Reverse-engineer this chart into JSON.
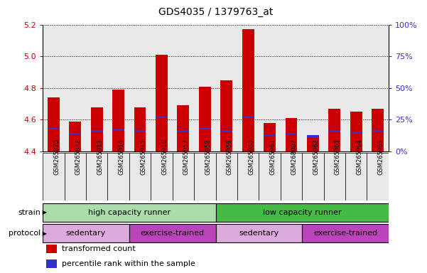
{
  "title": "GDS4035 / 1379763_at",
  "samples": [
    "GSM265870",
    "GSM265872",
    "GSM265913",
    "GSM265914",
    "GSM265915",
    "GSM265916",
    "GSM265957",
    "GSM265958",
    "GSM265959",
    "GSM265960",
    "GSM265961",
    "GSM268007",
    "GSM265962",
    "GSM265963",
    "GSM265964",
    "GSM265965"
  ],
  "transformed_counts": [
    4.74,
    4.59,
    4.68,
    4.79,
    4.68,
    5.01,
    4.69,
    4.81,
    4.85,
    5.17,
    4.58,
    4.61,
    4.49,
    4.67,
    4.65,
    4.67
  ],
  "percentile_ranks": [
    18,
    14,
    16,
    17,
    16,
    27,
    16,
    18,
    16,
    27,
    13,
    14,
    12,
    16,
    15,
    16
  ],
  "bar_base": 4.4,
  "ylim_left": [
    4.4,
    5.2
  ],
  "ylim_right": [
    0,
    100
  ],
  "yticks_left": [
    4.4,
    4.6,
    4.8,
    5.0,
    5.2
  ],
  "yticks_right": [
    0,
    25,
    50,
    75,
    100
  ],
  "ytick_labels_right": [
    "0%",
    "25%",
    "50%",
    "75%",
    "100%"
  ],
  "bar_color": "#cc0000",
  "percentile_color": "#3333cc",
  "bar_width": 0.55,
  "strain_groups": [
    {
      "label": "high capacity runner",
      "start": 0,
      "end": 8,
      "color": "#aaddaa"
    },
    {
      "label": "low capacity runner",
      "start": 8,
      "end": 16,
      "color": "#44bb44"
    }
  ],
  "protocol_groups": [
    {
      "label": "sedentary",
      "start": 0,
      "end": 4,
      "color": "#ddaadd"
    },
    {
      "label": "exercise-trained",
      "start": 4,
      "end": 8,
      "color": "#bb44bb"
    },
    {
      "label": "sedentary",
      "start": 8,
      "end": 12,
      "color": "#ddaadd"
    },
    {
      "label": "exercise-trained",
      "start": 12,
      "end": 16,
      "color": "#bb44bb"
    }
  ],
  "legend": [
    {
      "label": "transformed count",
      "color": "#cc0000"
    },
    {
      "label": "percentile rank within the sample",
      "color": "#3333cc"
    }
  ],
  "tick_label_color_left": "#cc0000",
  "tick_label_color_right": "#3333cc",
  "background_color": "#ffffff",
  "plot_bg_color": "#e8e8e8"
}
